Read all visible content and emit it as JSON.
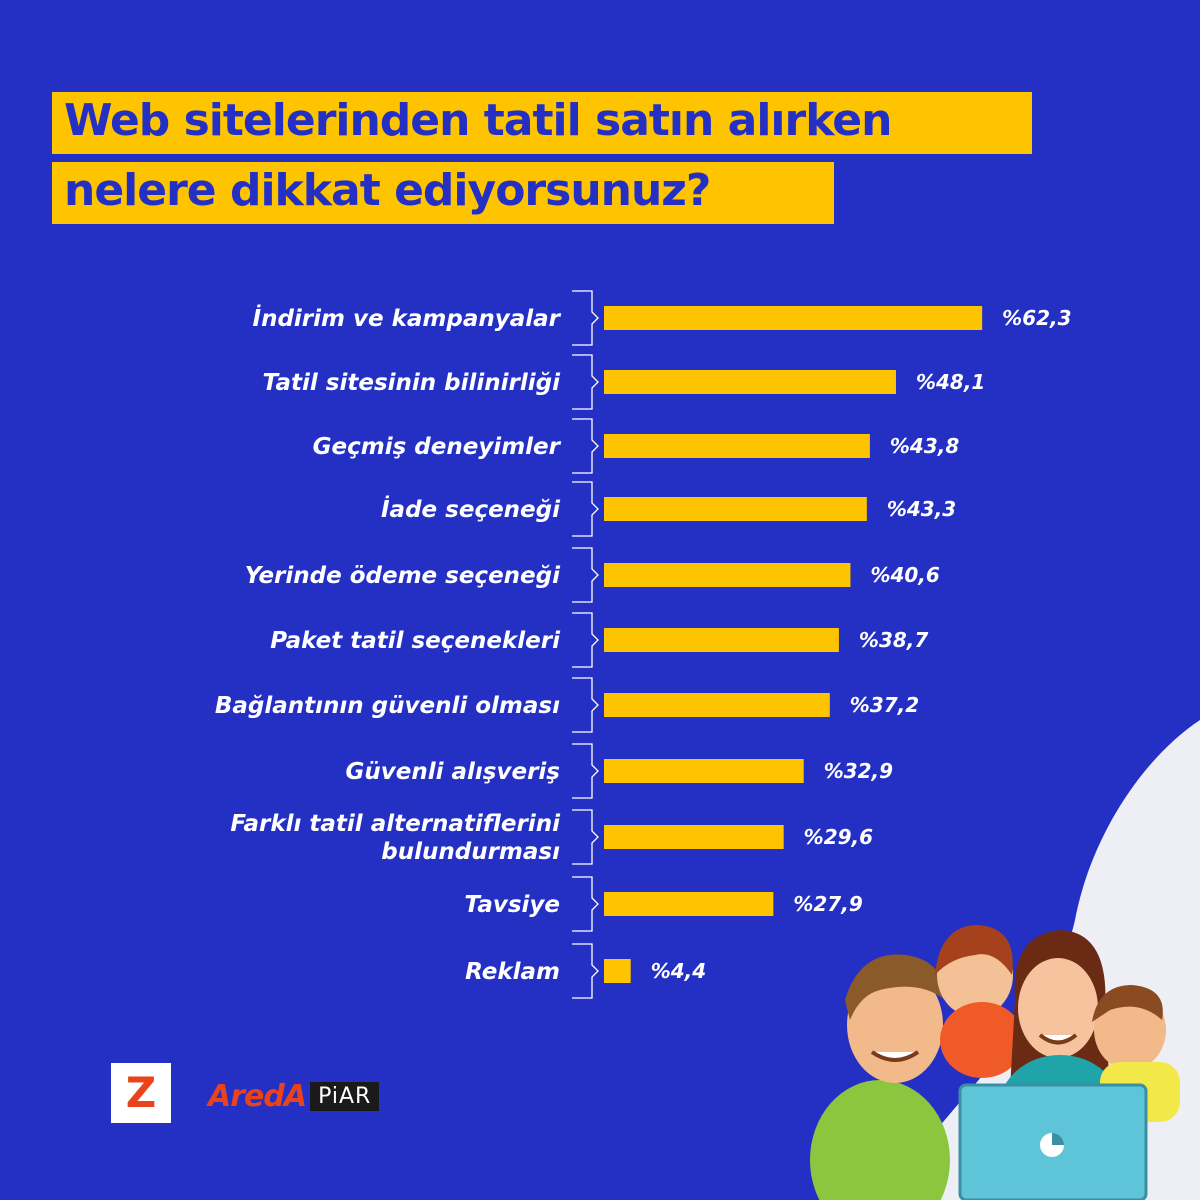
{
  "title_lines": [
    "Web sitelerinden tatil satın alırken",
    "nelere dikkat ediyorsunuz?"
  ],
  "chart_data": {
    "type": "bar",
    "orientation": "horizontal",
    "title": "Web sitelerinden tatil satın alırken nelere dikkat ediyorsunuz?",
    "categories": [
      "İndirim ve kampanyalar",
      "Tatil sitesinin bilinirliği",
      "Geçmiş deneyimler",
      "İade seçeneği",
      "Yerinde ödeme seçeneği",
      "Paket tatil seçenekleri",
      "Bağlantının güvenli olması",
      "Güvenli alışveriş",
      "Farklı tatil alternatiflerini bulundurması",
      "Tavsiye",
      "Reklam"
    ],
    "values": [
      62.3,
      48.1,
      43.8,
      43.3,
      40.6,
      38.7,
      37.2,
      32.9,
      29.6,
      27.9,
      4.4
    ],
    "value_labels": [
      "%62,3",
      "%48,1",
      "%43,8",
      "%43,3",
      "%40,6",
      "%38,7",
      "%37,2",
      "%32,9",
      "%29,6",
      "%27,9",
      "%4,4"
    ],
    "bar_color": "#ffc400",
    "grid": false,
    "legend": "none"
  },
  "logos": {
    "z_letter": "Z",
    "areda_text": "AredA",
    "piar_text": "PiAR"
  },
  "colors": {
    "background": "#2430c4",
    "accent": "#ffc400",
    "title_text": "#2430c4",
    "corner": "#eeeff4",
    "logo_red": "#e8431b"
  },
  "illustration": "family-with-laptop"
}
